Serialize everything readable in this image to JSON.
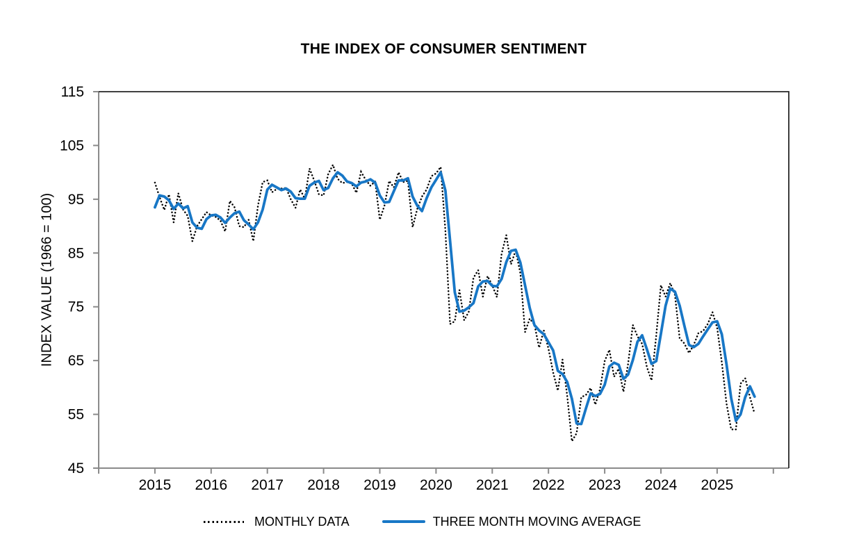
{
  "title": "THE INDEX OF CONSUMER SENTIMENT",
  "colors": {
    "moving_average_blue": "#1877c6",
    "monthly_dotted": "#000000",
    "frame_dark": "#262626",
    "axis_gray": "#8a8a8a",
    "text": "#000000"
  },
  "chart_data": {
    "type": "line",
    "title": "THE INDEX OF CONSUMER SENTIMENT",
    "xlabel": "",
    "ylabel": "INDEX VALUE (1966 = 100)",
    "ylim": [
      45,
      115
    ],
    "y_ticks": [
      45,
      55,
      65,
      75,
      85,
      95,
      105,
      115
    ],
    "x_ticks": [
      2015,
      2016,
      2017,
      2018,
      2019,
      2020,
      2021,
      2022,
      2023,
      2024,
      2025
    ],
    "grid": false,
    "legend_position": "bottom",
    "frequency": "monthly",
    "x_start": "2015-01",
    "x_end": "2025-09",
    "series": [
      {
        "name": "MONTHLY DATA",
        "style": "dotted",
        "color": "#000000",
        "values": [
          98.1,
          95.4,
          93.0,
          95.9,
          90.7,
          96.1,
          93.1,
          91.9,
          87.2,
          90.0,
          91.3,
          92.6,
          92.0,
          91.7,
          91.0,
          89.0,
          94.7,
          93.5,
          90.0,
          89.8,
          91.2,
          87.2,
          93.8,
          98.2,
          98.5,
          96.3,
          96.9,
          97.0,
          97.1,
          95.0,
          93.4,
          96.8,
          95.1,
          100.7,
          98.5,
          95.9,
          95.7,
          99.7,
          101.4,
          98.8,
          98.0,
          98.2,
          97.9,
          96.2,
          100.1,
          98.6,
          97.5,
          98.3,
          91.2,
          93.8,
          98.4,
          97.2,
          100.0,
          98.2,
          98.4,
          89.8,
          93.2,
          95.5,
          96.8,
          99.3,
          99.8,
          101.0,
          89.1,
          71.8,
          72.3,
          78.1,
          72.5,
          74.1,
          80.4,
          81.8,
          76.9,
          80.7,
          79.0,
          76.8,
          84.9,
          88.3,
          82.9,
          85.5,
          81.2,
          70.3,
          72.8,
          71.7,
          67.4,
          70.6,
          67.2,
          62.8,
          59.4,
          65.2,
          58.4,
          50.0,
          51.5,
          58.2,
          58.6,
          59.9,
          56.8,
          59.7,
          64.9,
          67.0,
          62.0,
          63.5,
          59.2,
          64.4,
          71.6,
          69.5,
          68.1,
          63.8,
          61.3,
          69.7,
          79.0,
          76.9,
          79.4,
          77.2,
          69.1,
          68.2,
          66.4,
          67.9,
          70.1,
          70.5,
          71.8,
          74.0,
          71.1,
          64.7,
          57.0,
          52.2,
          52.2,
          60.7,
          61.7,
          58.2,
          55.1
        ]
      },
      {
        "name": "THREE MONTH MOVING AVERAGE",
        "style": "solid",
        "color": "#1877c6",
        "values": [
          93.5,
          95.7,
          95.5,
          94.8,
          93.2,
          94.2,
          93.3,
          93.7,
          90.7,
          89.7,
          89.5,
          91.3,
          92.0,
          92.1,
          91.6,
          90.6,
          91.6,
          92.4,
          92.7,
          91.1,
          90.3,
          89.4,
          90.7,
          93.1,
          96.8,
          97.7,
          97.2,
          96.7,
          97.0,
          96.4,
          95.2,
          95.1,
          95.1,
          97.5,
          98.1,
          98.4,
          96.7,
          97.1,
          98.9,
          100.0,
          99.4,
          98.3,
          98.0,
          97.4,
          98.1,
          98.3,
          98.7,
          98.1,
          95.7,
          94.4,
          94.5,
          96.5,
          98.5,
          98.5,
          98.9,
          95.5,
          93.8,
          92.8,
          95.2,
          97.2,
          98.6,
          100.0,
          96.6,
          87.3,
          77.7,
          74.1,
          74.3,
          74.9,
          75.7,
          78.8,
          79.7,
          79.8,
          78.9,
          78.8,
          80.2,
          83.3,
          85.4,
          85.6,
          83.2,
          79.0,
          74.8,
          71.6,
          70.6,
          69.9,
          68.4,
          66.9,
          63.1,
          62.5,
          61.0,
          57.9,
          53.3,
          53.2,
          56.1,
          58.9,
          58.4,
          58.8,
          60.5,
          63.9,
          64.6,
          64.2,
          61.6,
          62.4,
          65.1,
          68.5,
          69.7,
          67.1,
          64.4,
          64.9,
          70.0,
          75.2,
          78.4,
          77.8,
          75.2,
          71.5,
          67.9,
          67.5,
          68.1,
          69.5,
          70.8,
          72.1,
          72.3,
          69.9,
          64.3,
          58.0,
          53.8,
          55.0,
          58.2,
          60.2,
          58.3
        ]
      }
    ]
  }
}
